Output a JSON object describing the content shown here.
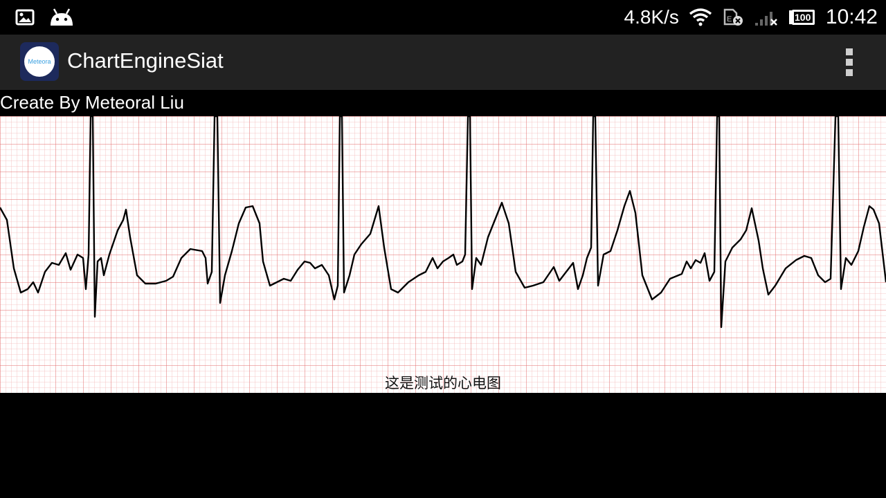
{
  "status_bar": {
    "net_speed": "4.8K/s",
    "time": "10:42",
    "battery": "100",
    "icons": [
      "gallery-icon",
      "android-icon",
      "wifi-icon",
      "sim-disabled-icon",
      "signal-no-service-icon",
      "battery-icon"
    ]
  },
  "action_bar": {
    "app_icon_text": "Meteora",
    "title": "ChartEngineSiat",
    "menu_icon": "overflow-menu-icon"
  },
  "content": {
    "credit": "Create By Meteoral Liu",
    "caption": "这是测试的心电图"
  },
  "colors": {
    "background": "#000000",
    "action_bar": "#222222",
    "grid_minor": "#f4b8b8",
    "grid_major": "#e36b6b",
    "trace": "#000000"
  },
  "chart_data": {
    "type": "line",
    "title": "这是测试的心电图",
    "xlabel": "",
    "ylabel": "",
    "grid": true,
    "legend": "none",
    "beat_count": 7
  }
}
